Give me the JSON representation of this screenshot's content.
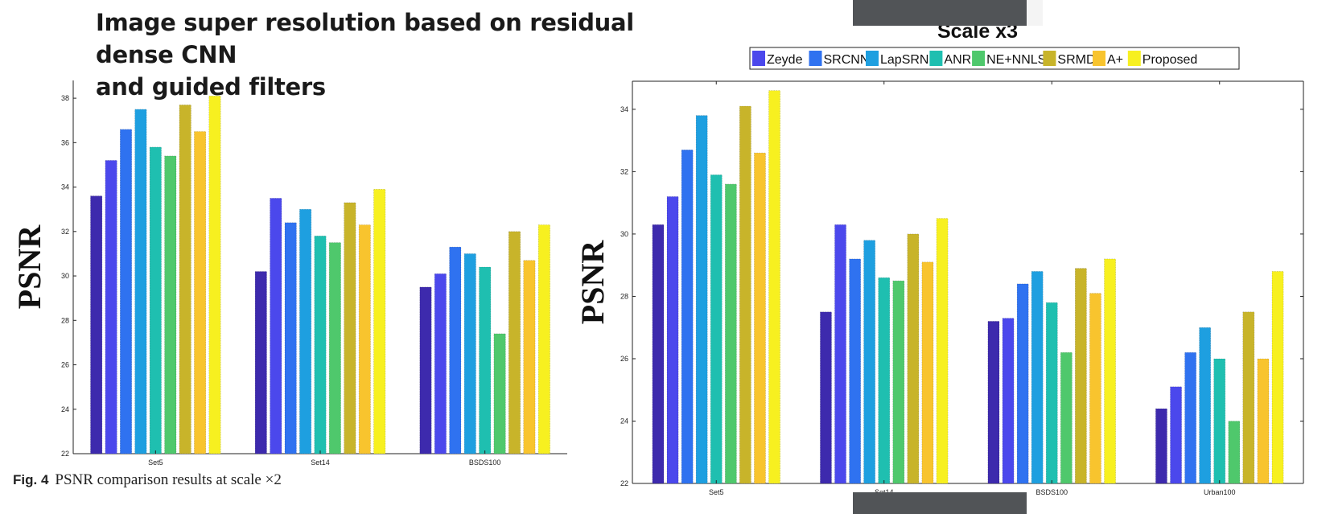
{
  "page": {
    "title_line1": "Image super resolution based on residual dense CNN",
    "title_line2": "and guided filters",
    "caption_number": "Fig. 4",
    "caption_text": "PSNR comparison results at scale ×2"
  },
  "chart_data": [
    {
      "type": "bar",
      "title": "",
      "xlabel": "",
      "ylabel": "PSNR",
      "ylim": [
        22,
        38.8
      ],
      "yticks": [
        22,
        24,
        26,
        28,
        30,
        32,
        34,
        36,
        38
      ],
      "grid": false,
      "categories": [
        "Set5",
        "Set14",
        "BSDS100"
      ],
      "series": [
        {
          "color": "#3d2aad",
          "values": [
            33.6,
            30.2,
            29.5
          ]
        },
        {
          "color": "#4b48ec",
          "values": [
            35.2,
            33.5,
            30.1
          ]
        },
        {
          "color": "#2f72f0",
          "values": [
            36.6,
            32.4,
            31.3
          ]
        },
        {
          "color": "#1e9fe0",
          "values": [
            37.5,
            33.0,
            31.0
          ]
        },
        {
          "color": "#1fbfb0",
          "values": [
            35.8,
            31.8,
            30.4
          ]
        },
        {
          "color": "#4fc86c",
          "values": [
            35.4,
            31.5,
            27.4
          ]
        },
        {
          "color": "#c8b42a",
          "values": [
            37.7,
            33.3,
            32.0
          ]
        },
        {
          "color": "#f8c42e",
          "values": [
            36.5,
            32.3,
            30.7
          ]
        },
        {
          "color": "#f7f020",
          "values": [
            38.1,
            33.9,
            32.3
          ]
        }
      ]
    },
    {
      "type": "bar",
      "title": "Scale x3",
      "xlabel": "",
      "ylabel": "PSNR",
      "ylim": [
        22,
        34.9
      ],
      "yticks": [
        22,
        24,
        26,
        28,
        30,
        32,
        34
      ],
      "grid": false,
      "legend_position": "top",
      "categories": [
        "Set5",
        "Set14",
        "BSDS100",
        "Urban100"
      ],
      "series": [
        {
          "name": "Zeyde",
          "color": "#3d2aad",
          "values": [
            30.3,
            27.5,
            27.2,
            24.4
          ]
        },
        {
          "name": "SRCNN",
          "color": "#4b48ec",
          "values": [
            31.2,
            30.3,
            27.3,
            25.1
          ]
        },
        {
          "name": "LapSRN",
          "color": "#2f72f0",
          "values": [
            32.7,
            29.2,
            28.4,
            26.2
          ]
        },
        {
          "name": "ANR",
          "color": "#1e9fe0",
          "values": [
            33.8,
            29.8,
            28.8,
            27.0
          ]
        },
        {
          "name": "NE+NNLS",
          "color": "#1fbfb0",
          "values": [
            31.9,
            28.6,
            27.8,
            26.0
          ]
        },
        {
          "name": "SRMD",
          "color": "#4fc86c",
          "values": [
            31.6,
            28.5,
            26.2,
            24.0
          ]
        },
        {
          "name": "A+",
          "color": "#c8b42a",
          "values": [
            34.1,
            30.0,
            28.9,
            27.5
          ]
        },
        {
          "name": "Proposed",
          "color": "#f8c42e",
          "values": [
            32.6,
            29.1,
            28.1,
            26.0
          ]
        },
        {
          "name": "",
          "color": "#f7f020",
          "values": [
            34.6,
            30.5,
            29.2,
            28.8
          ]
        }
      ],
      "legend_entries": [
        {
          "label": "Zeyde",
          "color": "#4b48ec"
        },
        {
          "label": "SRCNN",
          "color": "#2f72f0"
        },
        {
          "label": "LapSRN",
          "color": "#1e9fe0"
        },
        {
          "label": "ANR",
          "color": "#1fbfb0"
        },
        {
          "label": "NE+NNLS",
          "color": "#4fc86c"
        },
        {
          "label": "SRMD",
          "color": "#c8b42a"
        },
        {
          "label": "A+",
          "color": "#f8c42e"
        },
        {
          "label": "Proposed",
          "color": "#f7f020"
        }
      ]
    }
  ]
}
